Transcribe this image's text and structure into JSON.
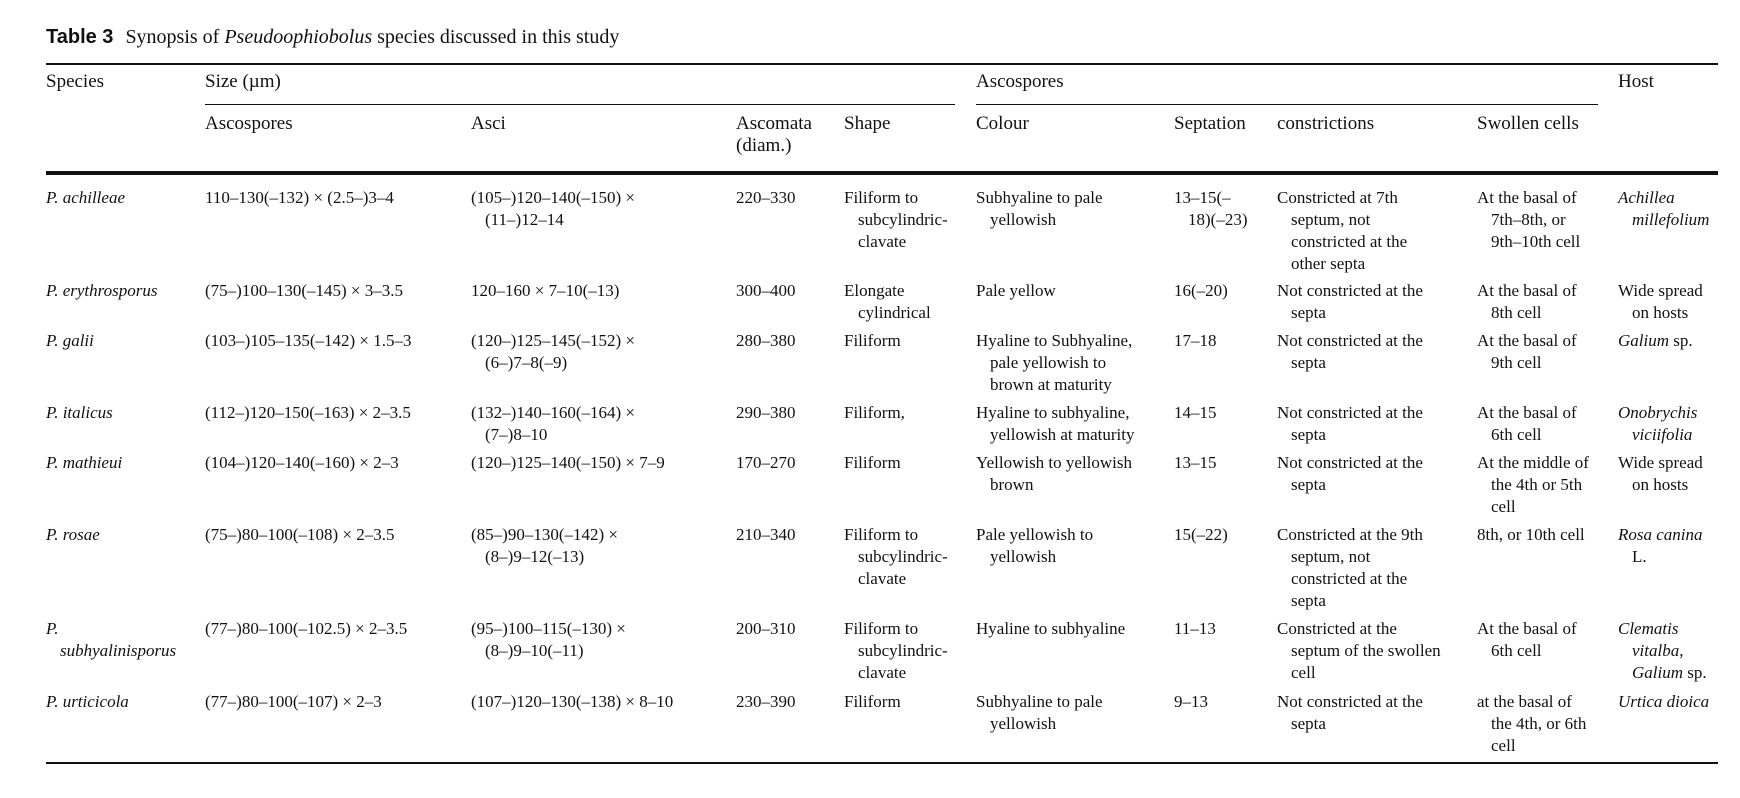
{
  "caption": {
    "label": "Table 3",
    "pre": "Synopsis of ",
    "genus": "Pseudoophiobolus",
    "post": " species discussed in this study"
  },
  "headers": {
    "species": "Species",
    "size_group": "Size (µm)",
    "ascospores_group": "Ascospores",
    "host": "Host",
    "size_ascospores": "Ascospores",
    "asci": "Asci",
    "ascomata_1": "Ascomata",
    "ascomata_2": "(diam.)",
    "shape": "Shape",
    "colour": "Colour",
    "septation": "Septation",
    "constrictions": "constrictions",
    "swollen": "Swollen cells"
  },
  "rows": [
    {
      "species": [
        "P. achilleae"
      ],
      "ascospores": [
        "110–130(–132) × (2.5–)3–4"
      ],
      "asci": [
        "(105–)120–140(–150) ×",
        "(11–)12–14"
      ],
      "ascomata": [
        "220–330"
      ],
      "shape": [
        "Filiform to",
        "subcylindric-",
        "clavate"
      ],
      "colour": [
        "Subhyaline to pale",
        "yellowish"
      ],
      "septation": [
        "13–15(–",
        "18)(–23)"
      ],
      "constrictions": [
        "Constricted at 7th",
        "septum, not",
        "constricted at the",
        "other septa"
      ],
      "swollen": [
        "At the basal of",
        "7th–8th, or",
        "9th–10th cell"
      ],
      "host": [
        "Achillea",
        "millefolium"
      ]
    },
    {
      "species": [
        "P. erythrosporus"
      ],
      "ascospores": [
        "(75–)100–130(–145) × 3–3.5"
      ],
      "asci": [
        "120–160 × 7–10(–13)"
      ],
      "ascomata": [
        "300–400"
      ],
      "shape": [
        "Elongate",
        "cylindrical"
      ],
      "colour": [
        "Pale yellow"
      ],
      "septation": [
        "16(–20)"
      ],
      "constrictions": [
        "Not constricted at the",
        "septa"
      ],
      "swollen": [
        "At the basal of",
        "8th cell"
      ],
      "host": [
        "Wide spread",
        "on hosts"
      ]
    },
    {
      "species": [
        "P. galii"
      ],
      "ascospores": [
        "(103–)105–135(–142) × 1.5–3"
      ],
      "asci": [
        "(120–)125–145(–152) ×",
        "(6–)7–8(–9)"
      ],
      "ascomata": [
        "280–380"
      ],
      "shape": [
        "Filiform"
      ],
      "colour": [
        "Hyaline to Subhyaline,",
        "pale yellowish to",
        "brown at maturity"
      ],
      "septation": [
        "17–18"
      ],
      "constrictions": [
        "Not constricted at the",
        "septa"
      ],
      "swollen": [
        "At the basal of",
        "9th cell"
      ],
      "host": [
        "Galium sp."
      ]
    },
    {
      "species": [
        "P. italicus"
      ],
      "ascospores": [
        "(112–)120–150(–163) × 2–3.5"
      ],
      "asci": [
        "(132–)140–160(–164) ×",
        "(7–)8–10"
      ],
      "ascomata": [
        "290–380"
      ],
      "shape": [
        "Filiform,"
      ],
      "colour": [
        "Hyaline to subhyaline,",
        "yellowish at maturity"
      ],
      "septation": [
        "14–15"
      ],
      "constrictions": [
        "Not constricted at the",
        "septa"
      ],
      "swollen": [
        "At the basal of",
        "6th cell"
      ],
      "host": [
        "Onobrychis",
        "viciifolia"
      ]
    },
    {
      "species": [
        "P. mathieui"
      ],
      "ascospores": [
        "(104–)120–140(–160) × 2–3"
      ],
      "asci": [
        "(120–)125–140(–150) × 7–9"
      ],
      "ascomata": [
        "170–270"
      ],
      "shape": [
        "Filiform"
      ],
      "colour": [
        "Yellowish to yellowish",
        "brown"
      ],
      "septation": [
        "13–15"
      ],
      "constrictions": [
        "Not constricted at the",
        "septa"
      ],
      "swollen": [
        "At the middle of",
        "the 4th or 5th",
        "cell"
      ],
      "host": [
        "Wide spread",
        "on hosts"
      ]
    },
    {
      "species": [
        "P. rosae"
      ],
      "ascospores": [
        "(75–)80–100(–108) × 2–3.5"
      ],
      "asci": [
        "(85–)90–130(–142) ×",
        "(8–)9–12(–13)"
      ],
      "ascomata": [
        "210–340"
      ],
      "shape": [
        "Filiform to",
        "subcylindric-",
        "clavate"
      ],
      "colour": [
        "Pale yellowish to",
        "yellowish"
      ],
      "septation": [
        "15(–22)"
      ],
      "constrictions": [
        "Constricted at the 9th",
        "septum, not",
        "constricted at the",
        "septa"
      ],
      "swollen": [
        "8th, or 10th cell"
      ],
      "host": [
        "Rosa canina",
        "L."
      ]
    },
    {
      "species": [
        "P.",
        "subhyalinisporus"
      ],
      "ascospores": [
        "(77–)80–100(–102.5) × 2–3.5"
      ],
      "asci": [
        "(95–)100–115(–130) ×",
        "(8–)9–10(–11)"
      ],
      "ascomata": [
        "200–310"
      ],
      "shape": [
        "Filiform to",
        "subcylindric-",
        "clavate"
      ],
      "colour": [
        "Hyaline to subhyaline"
      ],
      "septation": [
        "11–13"
      ],
      "constrictions": [
        "Constricted at the",
        "septum of the swollen",
        "cell"
      ],
      "swollen": [
        "At the basal of",
        "6th cell"
      ],
      "host": [
        "Clematis",
        "vitalba,",
        "Galium sp."
      ]
    },
    {
      "species": [
        "P. urticicola"
      ],
      "ascospores": [
        "(77–)80–100(–107) × 2–3"
      ],
      "asci": [
        "(107–)120–130(–138) × 8–10"
      ],
      "ascomata": [
        "230–390"
      ],
      "shape": [
        "Filiform"
      ],
      "colour": [
        "Subhyaline to pale",
        "yellowish"
      ],
      "septation": [
        "9–13"
      ],
      "constrictions": [
        "Not constricted at the",
        "septa"
      ],
      "swollen": [
        "at the basal of",
        "the 4th, or 6th",
        "cell"
      ],
      "host": [
        "Urtica dioica"
      ]
    }
  ]
}
